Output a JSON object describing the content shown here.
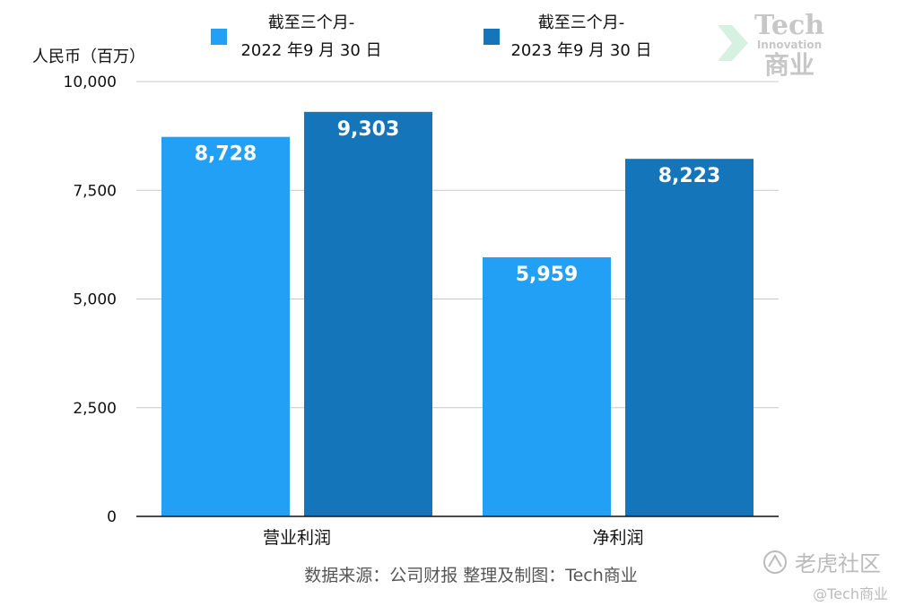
{
  "chart_data": {
    "type": "bar",
    "ylabel": "人民币（百万）",
    "categories": [
      "营业利润",
      "净利润"
    ],
    "ylim": [
      0,
      10000
    ],
    "yticks": [
      "0",
      "2,500",
      "5,000",
      "7,500",
      "10,000"
    ],
    "ytick_values": [
      0,
      2500,
      5000,
      7500,
      10000
    ],
    "grid": true,
    "legend_position": "top",
    "series": [
      {
        "name_line1": "截至三个月-",
        "name_line2": "2022 年9 月 30 日",
        "color": "#21A0F5",
        "values": [
          8728,
          5959
        ],
        "labels": [
          "8,728",
          "5,959"
        ]
      },
      {
        "name_line1": "截至三个月-",
        "name_line2": "2023 年9 月 30 日",
        "color": "#1575BB",
        "values": [
          9303,
          8223
        ],
        "labels": [
          "9,303",
          "8,223"
        ]
      }
    ]
  },
  "source_text": "数据来源：公司财报 整理及制图：Tech商业",
  "watermark_logo": {
    "line1": "Tech",
    "line2": "Innovation",
    "line3": "商业"
  },
  "watermark_corner": {
    "community": "老虎社区",
    "handle": "@Tech商业"
  }
}
